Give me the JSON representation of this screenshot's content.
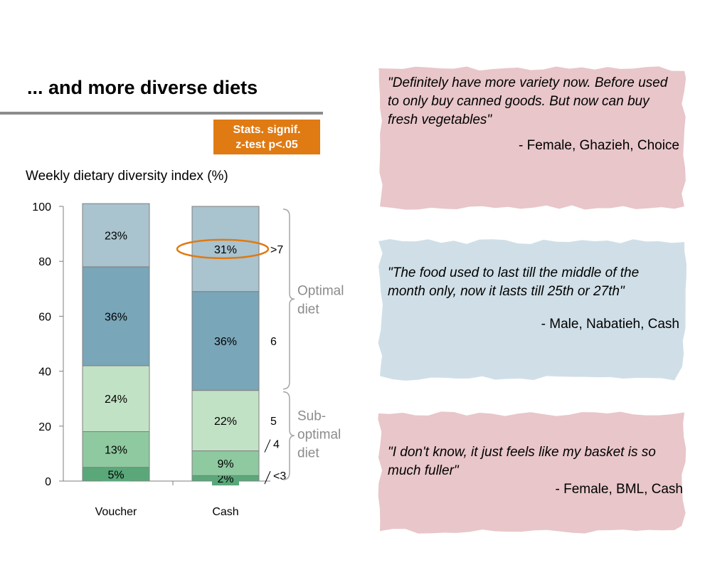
{
  "title": "... and more diverse diets",
  "badge": {
    "line1": "Stats. signif.",
    "line2": "z-test p<.05"
  },
  "chart_data": {
    "type": "bar",
    "stacked": true,
    "title": "Weekly dietary diversity index (%)",
    "categories": [
      "Voucher",
      "Cash"
    ],
    "ylim": [
      0,
      100
    ],
    "yticks": [
      0,
      20,
      40,
      60,
      80,
      100
    ],
    "series": [
      {
        "name": "<3",
        "color": "#5aa87a",
        "values": [
          5,
          2
        ],
        "labels": [
          "5%",
          "2%"
        ]
      },
      {
        "name": "4",
        "color": "#8fc9a0",
        "values": [
          13,
          9
        ],
        "labels": [
          "13%",
          "9%"
        ]
      },
      {
        "name": "5",
        "color": "#c2e2c6",
        "values": [
          24,
          22
        ],
        "labels": [
          "24%",
          "22%"
        ]
      },
      {
        "name": "6",
        "color": "#79a6b8",
        "values": [
          36,
          36
        ],
        "labels": [
          "36%",
          "36%"
        ]
      },
      {
        "name": ">7",
        "color": "#a9c3cf",
        "values": [
          23,
          31
        ],
        "labels": [
          "23%",
          "31%"
        ]
      }
    ],
    "highlight": {
      "category": "Cash",
      "series": ">7",
      "label": "31%"
    },
    "groups": [
      {
        "label_lines": [
          "Optimal",
          "diet"
        ],
        "series": [
          ">7",
          "6"
        ]
      },
      {
        "label_lines": [
          "Sub-",
          "optimal",
          "diet"
        ],
        "series": [
          "5",
          "4",
          "<3"
        ]
      }
    ]
  },
  "quotes": [
    {
      "text": "\"Definitely have more variety now. Before used to only buy canned goods. But now can buy fresh vegetables\"",
      "attribution": "- Female, Ghazieh, Choice",
      "color": "#e8c6c9"
    },
    {
      "text": "\"The food used to last till the middle of the month only, now it lasts till 25th or 27th\"",
      "attribution": "- Male, Nabatieh, Cash",
      "color": "#d0dfe7"
    },
    {
      "text": "\"I don't know, it just feels like my basket is so much fuller\"",
      "attribution": "- Female, BML, Cash",
      "color": "#e8c6c9"
    }
  ]
}
